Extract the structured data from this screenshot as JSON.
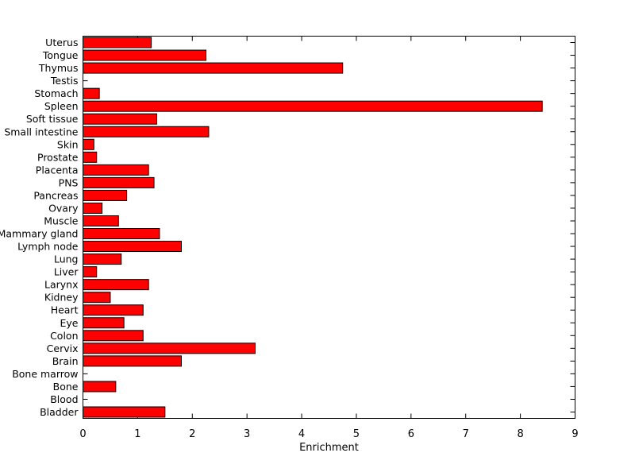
{
  "figure": {
    "background_color": "#FFFFFF",
    "axis_color": "#000000",
    "text_color": "#000000",
    "bar_fill_color": "#FF0000",
    "bar_edge_color": "#000000"
  },
  "chart_data": {
    "type": "bar",
    "orientation": "horizontal",
    "title": "",
    "xlabel": "Enrichment",
    "ylabel": "",
    "xlim": [
      0,
      9
    ],
    "xticks": [
      0,
      1,
      2,
      3,
      4,
      5,
      6,
      7,
      8,
      9
    ],
    "grid": false,
    "legend": null,
    "categories_top_to_bottom": [
      "Uterus",
      "Tongue",
      "Thymus",
      "Testis",
      "Stomach",
      "Spleen",
      "Soft tissue",
      "Small intestine",
      "Skin",
      "Prostate",
      "Placenta",
      "PNS",
      "Pancreas",
      "Ovary",
      "Muscle",
      "Mammary gland",
      "Lymph node",
      "Lung",
      "Liver",
      "Larynx",
      "Kidney",
      "Heart",
      "Eye",
      "Colon",
      "Cervix",
      "Brain",
      "Bone marrow",
      "Bone",
      "Blood",
      "Bladder"
    ],
    "values": [
      1.25,
      2.25,
      4.75,
      0,
      0.3,
      8.4,
      1.35,
      2.3,
      0.2,
      0.25,
      1.2,
      1.3,
      0.8,
      0.35,
      0.65,
      1.4,
      1.8,
      0.7,
      0.25,
      1.2,
      0.5,
      1.1,
      0.75,
      1.1,
      3.15,
      1.8,
      0,
      0.6,
      0,
      1.5
    ]
  }
}
